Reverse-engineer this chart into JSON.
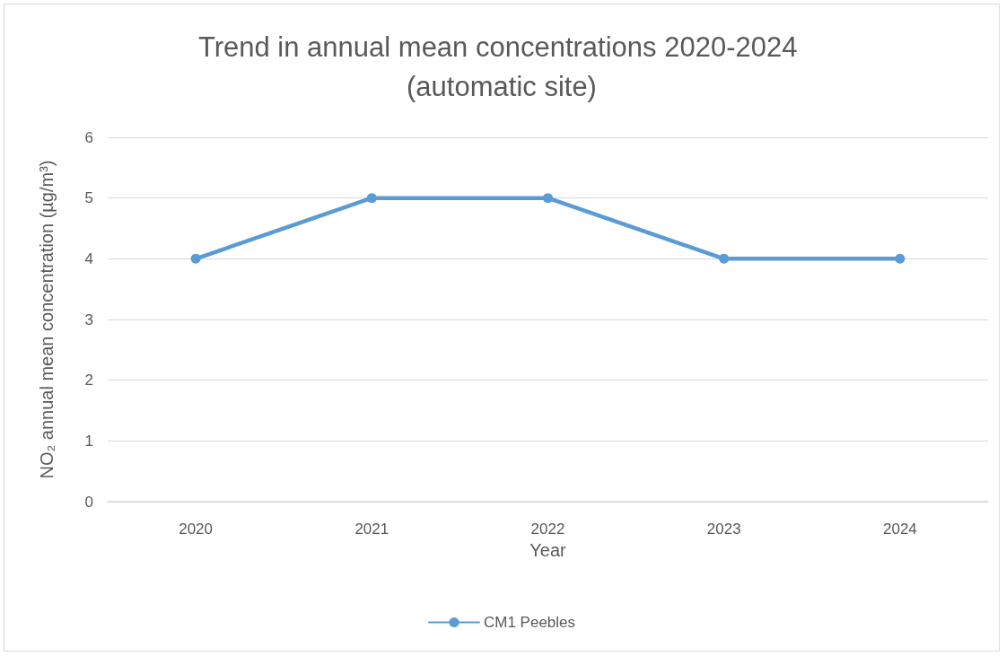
{
  "chart_data": {
    "type": "line",
    "title": "Trend in annual mean concentrations 2020-2024 (automatic site)",
    "xlabel": "Year",
    "ylabel": "NO₂ annual mean concentration (µg/m³)",
    "categories": [
      "2020",
      "2021",
      "2022",
      "2023",
      "2024"
    ],
    "series": [
      {
        "name": "CM1 Peebles",
        "color": "#5b9bd5",
        "values": [
          4,
          5,
          5,
          4,
          4
        ]
      }
    ],
    "ylim": [
      0,
      6
    ],
    "yticks": [
      0,
      1,
      2,
      3,
      4,
      5,
      6
    ],
    "grid": "y",
    "legend": "bottom",
    "marker": "circle",
    "line_style": "solid"
  }
}
